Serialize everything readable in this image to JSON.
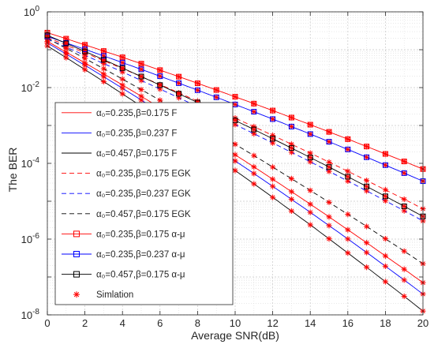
{
  "chart_data": {
    "type": "line",
    "title": "",
    "xlabel": "Average SNR(dB)",
    "ylabel": "The BER",
    "xlim": [
      0,
      20
    ],
    "ylim_log10": [
      -8,
      0
    ],
    "y_scale": "log",
    "grid": true,
    "minor_grid": true,
    "legend_position": "inside-lower-left",
    "x_ticks": [
      {
        "value": 0,
        "label": "0"
      },
      {
        "value": 2,
        "label": "2"
      },
      {
        "value": 4,
        "label": "4"
      },
      {
        "value": 6,
        "label": "6"
      },
      {
        "value": 8,
        "label": "8"
      },
      {
        "value": 10,
        "label": "10"
      },
      {
        "value": 12,
        "label": "12"
      },
      {
        "value": 14,
        "label": "14"
      },
      {
        "value": 16,
        "label": "16"
      },
      {
        "value": 18,
        "label": "18"
      },
      {
        "value": 20,
        "label": "20"
      }
    ],
    "y_ticks": [
      {
        "exp": 0,
        "base": "10",
        "sup": "0"
      },
      {
        "exp": -2,
        "base": "10",
        "sup": "-2"
      },
      {
        "exp": -4,
        "base": "10",
        "sup": "-4"
      },
      {
        "exp": -6,
        "base": "10",
        "sup": "-6"
      },
      {
        "exp": -8,
        "base": "10",
        "sup": "-8"
      }
    ],
    "x": [
      0,
      1,
      2,
      3,
      4,
      5,
      6,
      7,
      8,
      9,
      10,
      11,
      12,
      13,
      14,
      15,
      16,
      17,
      18,
      19,
      20
    ],
    "curves": [
      {
        "id": "a1",
        "color": "#ff0000",
        "slope": -0.111,
        "end": -4.15,
        "dash": false
      },
      {
        "id": "a2",
        "color": "#0000ff",
        "slope": -0.109,
        "end": -4.47,
        "dash": false
      },
      {
        "id": "b1",
        "color": "#ff0000",
        "slope": -0.09,
        "end": -5.2,
        "dash": true
      },
      {
        "id": "b2",
        "color": "#0000ff",
        "slope": -0.095,
        "end": -5.52,
        "dash": true
      },
      {
        "id": "c1",
        "color": "#000000",
        "slope": -0.105,
        "end": -5.4,
        "dash": false
      },
      {
        "id": "c2",
        "color": "#000000",
        "slope": -0.085,
        "end": -6.65,
        "dash": true
      },
      {
        "id": "d1",
        "color": "#ff0000",
        "slope": -0.07,
        "end": -7.15,
        "dash": false
      },
      {
        "id": "d2",
        "color": "#0000ff",
        "slope": -0.075,
        "end": -7.45,
        "dash": false
      },
      {
        "id": "d3",
        "color": "#000000",
        "slope": -0.09,
        "end": -7.9,
        "dash": false
      }
    ],
    "start_values_log10": [
      -0.55,
      -0.65,
      -0.68,
      -0.72,
      -0.62,
      -0.7,
      -0.78,
      -0.82,
      -0.9
    ],
    "square_marker_curves": [
      {
        "curve": "a1",
        "color": "#ff0000"
      },
      {
        "curve": "a2",
        "color": "#0000ff"
      },
      {
        "curve": "c1",
        "color": "#000000"
      }
    ],
    "legend": [
      {
        "label": "α₀=0.235,β=0.175 F",
        "color": "#ff0000",
        "style": "solid",
        "marker": "none"
      },
      {
        "label": "α₀=0.235,β=0.237 F",
        "color": "#0000ff",
        "style": "solid",
        "marker": "none"
      },
      {
        "label": "α₀=0.457,β=0.175 F",
        "color": "#000000",
        "style": "solid",
        "marker": "none"
      },
      {
        "label": "α₀=0.235,β=0.175 EGK",
        "color": "#ff0000",
        "style": "dashed",
        "marker": "none"
      },
      {
        "label": "α₀=0.235,β=0.237 EGK",
        "color": "#0000ff",
        "style": "dashed",
        "marker": "none"
      },
      {
        "label": "α₀=0.457,β=0.175 EGK",
        "color": "#000000",
        "style": "dashed",
        "marker": "none"
      },
      {
        "label": "α₀=0.235,β=0.175 α-μ",
        "color": "#ff0000",
        "style": "solid",
        "marker": "square"
      },
      {
        "label": "α₀=0.235,β=0.237 α-μ",
        "color": "#0000ff",
        "style": "solid",
        "marker": "square"
      },
      {
        "label": "α₀=0.457,β=0.175 α-μ",
        "color": "#000000",
        "style": "solid",
        "marker": "square"
      },
      {
        "label": "Simlation",
        "color": "#ff0000",
        "style": "none",
        "marker": "asterisk"
      }
    ]
  }
}
